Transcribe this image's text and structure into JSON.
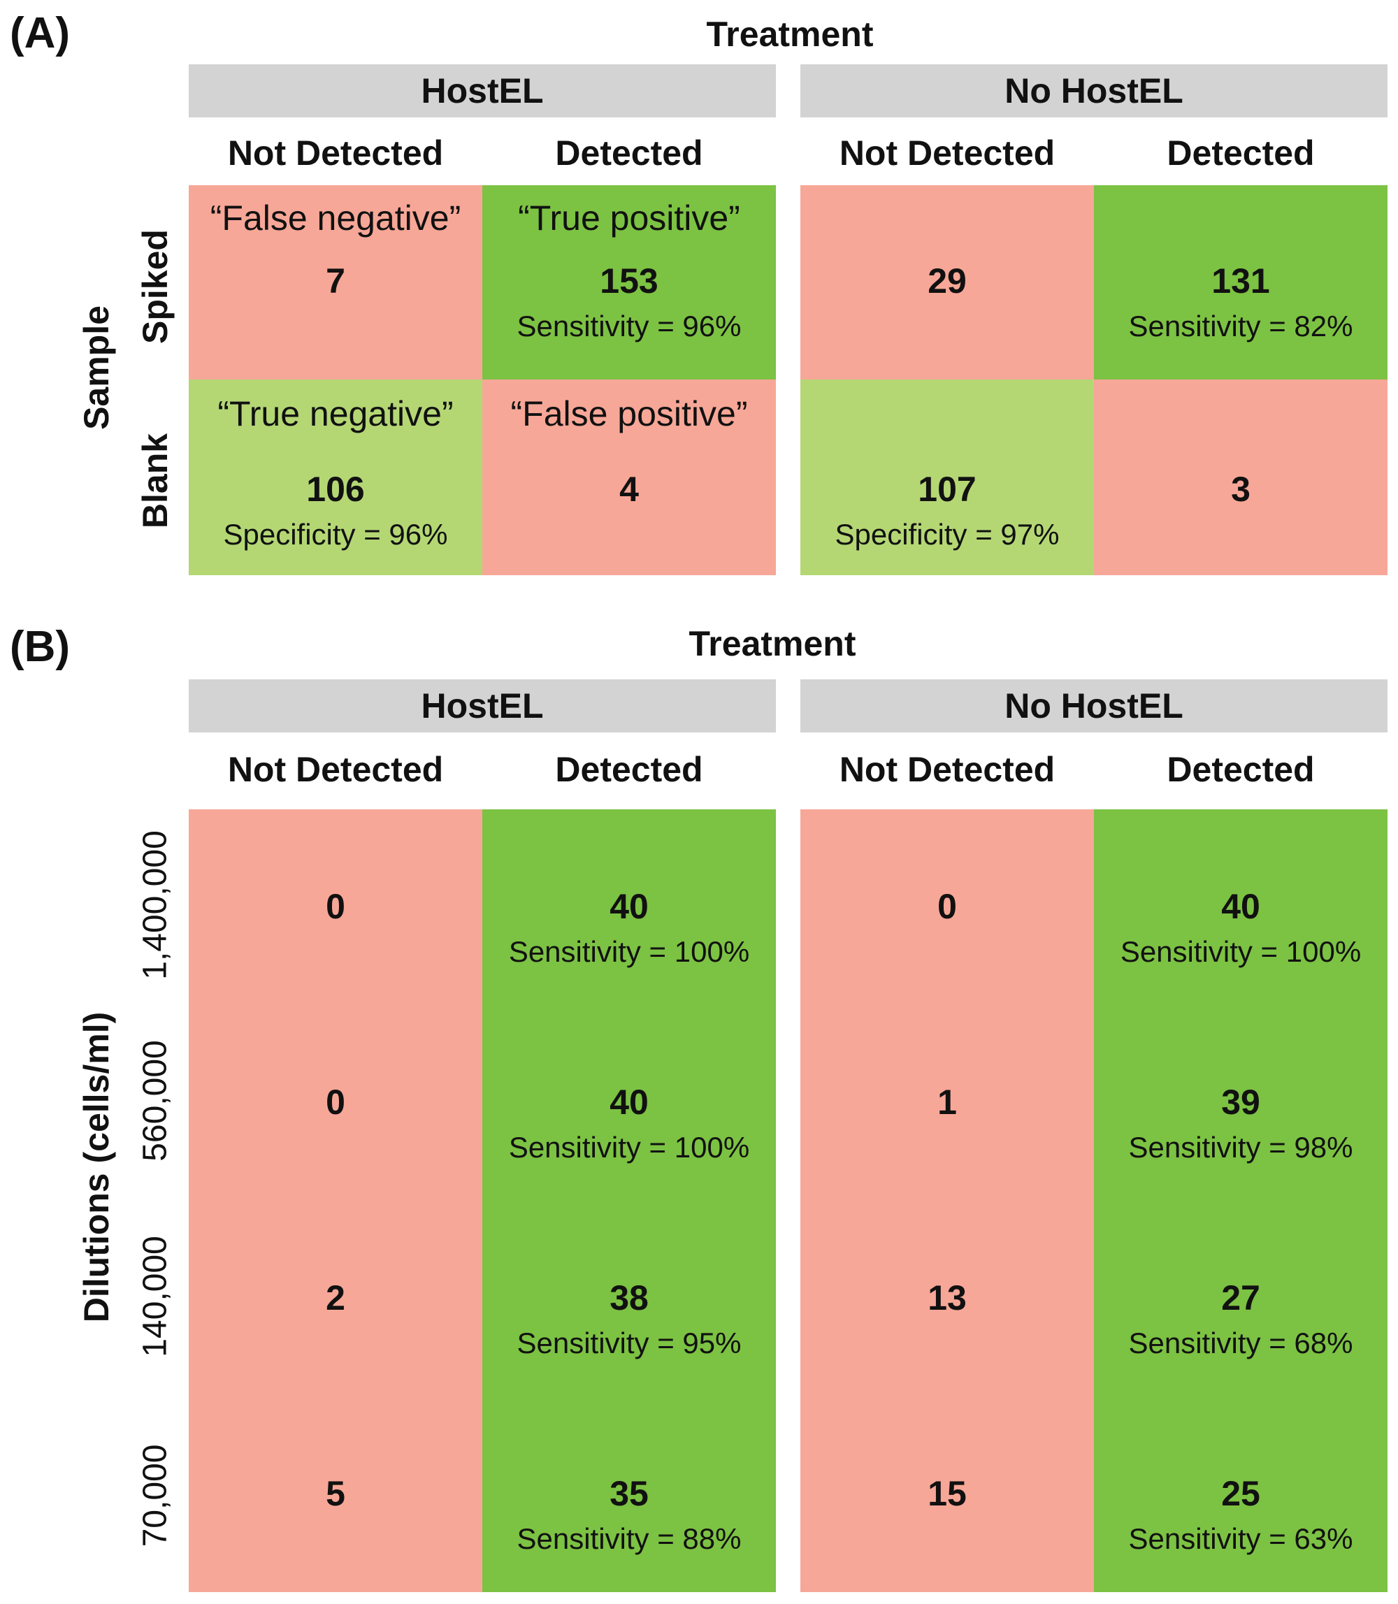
{
  "chart_data": [
    {
      "type": "table",
      "panel": "(A)",
      "title": "Treatment",
      "row_axis_title": "Sample",
      "groups": [
        "HostEL",
        "No HostEL"
      ],
      "columns": [
        "Not Detected",
        "Detected"
      ],
      "rows": [
        {
          "label": "Spiked",
          "cells": [
            {
              "quadrant": "“False negative”",
              "count": "7",
              "stat": ""
            },
            {
              "quadrant": "“True positive”",
              "count": "153",
              "stat": "Sensitivity = 96%"
            },
            {
              "quadrant": "",
              "count": "29",
              "stat": ""
            },
            {
              "quadrant": "",
              "count": "131",
              "stat": "Sensitivity = 82%"
            }
          ]
        },
        {
          "label": "Blank",
          "cells": [
            {
              "quadrant": "“True negative”",
              "count": "106",
              "stat": "Specificity = 96%"
            },
            {
              "quadrant": "“False positive”",
              "count": "4",
              "stat": ""
            },
            {
              "quadrant": "",
              "count": "107",
              "stat": "Specificity = 97%"
            },
            {
              "quadrant": "",
              "count": "3",
              "stat": ""
            }
          ]
        }
      ]
    },
    {
      "type": "table",
      "panel": "(B)",
      "title": "Treatment",
      "row_axis_title": "Dilutions (cells/ml)",
      "groups": [
        "HostEL",
        "No HostEL"
      ],
      "columns": [
        "Not Detected",
        "Detected"
      ],
      "rows": [
        {
          "label": "1,400,000",
          "cells": [
            {
              "count": "0",
              "stat": ""
            },
            {
              "count": "40",
              "stat": "Sensitivity = 100%"
            },
            {
              "count": "0",
              "stat": ""
            },
            {
              "count": "40",
              "stat": "Sensitivity = 100%"
            }
          ]
        },
        {
          "label": "560,000",
          "cells": [
            {
              "count": "0",
              "stat": ""
            },
            {
              "count": "40",
              "stat": "Sensitivity = 100%"
            },
            {
              "count": "1",
              "stat": ""
            },
            {
              "count": "39",
              "stat": "Sensitivity = 98%"
            }
          ]
        },
        {
          "label": "140,000",
          "cells": [
            {
              "count": "2",
              "stat": ""
            },
            {
              "count": "38",
              "stat": "Sensitivity = 95%"
            },
            {
              "count": "13",
              "stat": ""
            },
            {
              "count": "27",
              "stat": "Sensitivity = 68%"
            }
          ]
        },
        {
          "label": "70,000",
          "cells": [
            {
              "count": "5",
              "stat": ""
            },
            {
              "count": "35",
              "stat": "Sensitivity = 88%"
            },
            {
              "count": "15",
              "stat": ""
            },
            {
              "count": "25",
              "stat": "Sensitivity = 63%"
            }
          ]
        }
      ]
    }
  ],
  "colors": {
    "not_detected": "#f7a797",
    "detected": "#7cc243",
    "true_negative": "#b4d774",
    "header": "#d3d3d3"
  }
}
